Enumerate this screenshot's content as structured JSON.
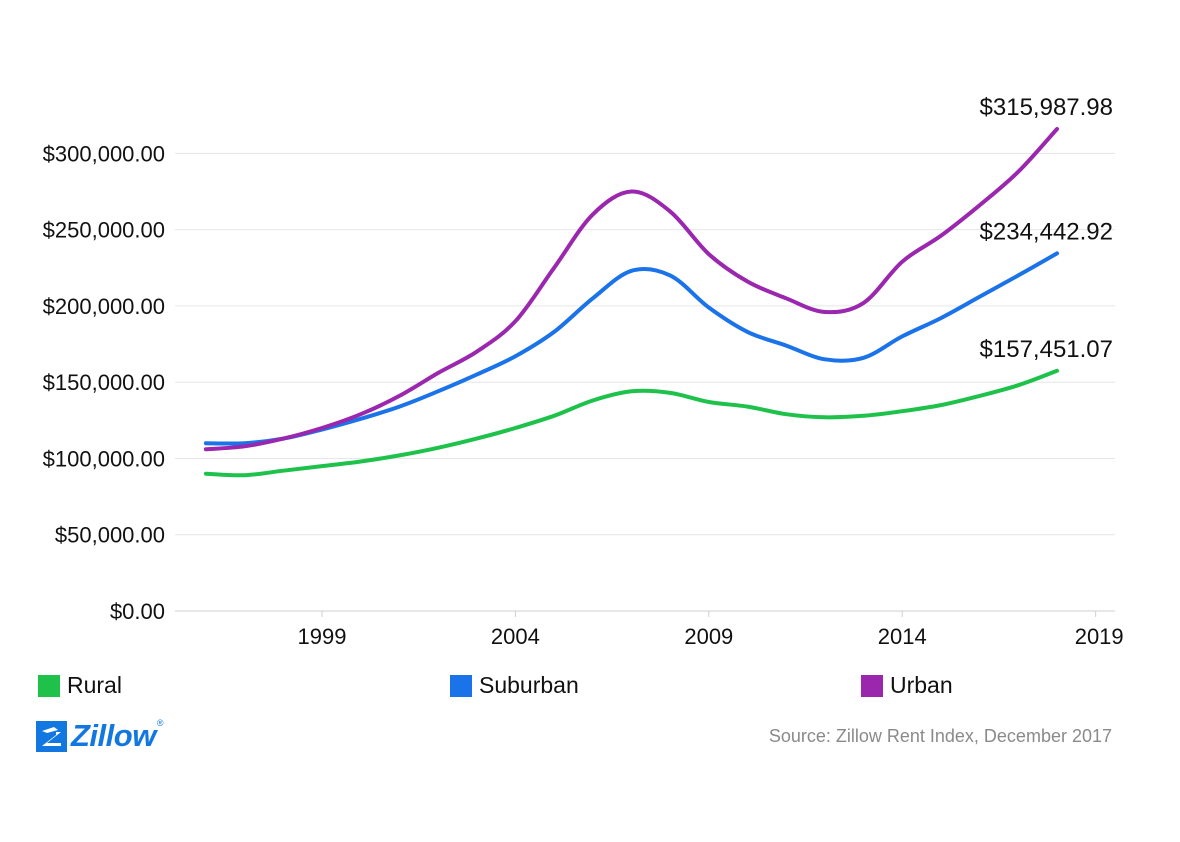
{
  "chart_data": {
    "type": "line",
    "title": "",
    "xlabel": "",
    "ylabel": "",
    "x_ticks": [
      1999,
      2004,
      2009,
      2014,
      2019
    ],
    "y_ticks": [
      "$300,000.00",
      "$250,000.00",
      "$200,000.00",
      "$150,000.00",
      "$100,000.00",
      "$50,000.00",
      "$0.00"
    ],
    "xlim": [
      1995.2,
      2019.5
    ],
    "ylim": [
      0,
      315987.98
    ],
    "grid": true,
    "legend_position": "bottom",
    "series": [
      {
        "name": "Rural",
        "color": "#1ec24a",
        "end_label": "$157,451.07",
        "points": [
          [
            1996,
            90000
          ],
          [
            1997,
            89000
          ],
          [
            1998,
            92000
          ],
          [
            1999,
            95000
          ],
          [
            2000,
            98000
          ],
          [
            2001,
            102000
          ],
          [
            2002,
            107000
          ],
          [
            2003,
            113000
          ],
          [
            2004,
            120000
          ],
          [
            2005,
            128000
          ],
          [
            2006,
            138000
          ],
          [
            2007,
            144000
          ],
          [
            2008,
            143000
          ],
          [
            2009,
            137000
          ],
          [
            2010,
            134000
          ],
          [
            2011,
            129000
          ],
          [
            2012,
            127000
          ],
          [
            2013,
            128000
          ],
          [
            2014,
            131000
          ],
          [
            2015,
            135000
          ],
          [
            2016,
            141000
          ],
          [
            2017,
            148000
          ],
          [
            2018,
            157451.07
          ]
        ]
      },
      {
        "name": "Suburban",
        "color": "#1a73e8",
        "end_label": "$234,442.92",
        "points": [
          [
            1996,
            110000
          ],
          [
            1997,
            110000
          ],
          [
            1998,
            113000
          ],
          [
            1999,
            119000
          ],
          [
            2000,
            126000
          ],
          [
            2001,
            134000
          ],
          [
            2002,
            144000
          ],
          [
            2003,
            155000
          ],
          [
            2004,
            167000
          ],
          [
            2005,
            183000
          ],
          [
            2006,
            205000
          ],
          [
            2007,
            223000
          ],
          [
            2008,
            220000
          ],
          [
            2009,
            199000
          ],
          [
            2010,
            183000
          ],
          [
            2011,
            174000
          ],
          [
            2012,
            165000
          ],
          [
            2013,
            166000
          ],
          [
            2014,
            180000
          ],
          [
            2015,
            192000
          ],
          [
            2016,
            206000
          ],
          [
            2017,
            220000
          ],
          [
            2018,
            234442.92
          ]
        ]
      },
      {
        "name": "Urban",
        "color": "#9b27af",
        "end_label": "$315,987.98",
        "points": [
          [
            1996,
            106000
          ],
          [
            1997,
            108000
          ],
          [
            1998,
            113000
          ],
          [
            1999,
            120000
          ],
          [
            2000,
            129000
          ],
          [
            2001,
            141000
          ],
          [
            2002,
            156000
          ],
          [
            2003,
            170000
          ],
          [
            2004,
            190000
          ],
          [
            2005,
            225000
          ],
          [
            2006,
            260000
          ],
          [
            2007,
            275000
          ],
          [
            2008,
            262000
          ],
          [
            2009,
            234000
          ],
          [
            2010,
            216000
          ],
          [
            2011,
            205000
          ],
          [
            2012,
            196000
          ],
          [
            2013,
            202000
          ],
          [
            2014,
            229000
          ],
          [
            2015,
            246000
          ],
          [
            2016,
            266000
          ],
          [
            2017,
            288000
          ],
          [
            2018,
            315987.98
          ]
        ]
      }
    ]
  },
  "branding": {
    "logo_text": "Zillow",
    "logo_mark": "zillow-z-icon",
    "source_text": "Source: Zillow Rent Index, December 2017"
  }
}
